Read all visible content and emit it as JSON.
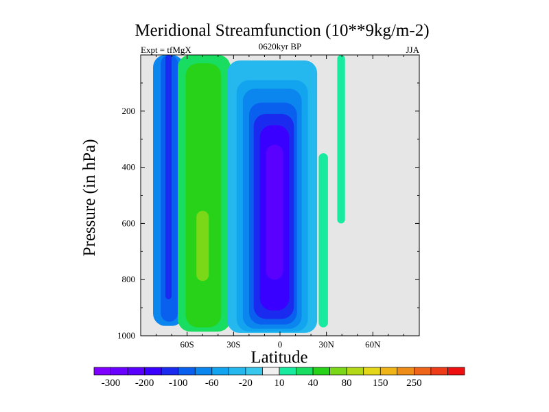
{
  "chart_data": {
    "type": "contour",
    "title": "Meridional Streamfunction (10**9kg/m-2)",
    "left_string": "Expt = tfMgX",
    "center_string": "0620kyr BP",
    "right_string": "JJA",
    "xlabel": "Latitude",
    "ylabel": "Pressure (in hPa)",
    "xlim": [
      -90,
      90
    ],
    "ylim": [
      0,
      1000
    ],
    "y_reversed": true,
    "x_ticks": [
      {
        "value": -60,
        "label": "60S"
      },
      {
        "value": -30,
        "label": "30S"
      },
      {
        "value": 0,
        "label": "0"
      },
      {
        "value": 30,
        "label": "30N"
      },
      {
        "value": 60,
        "label": "60N"
      }
    ],
    "y_ticks": [
      {
        "value": 200,
        "label": "200"
      },
      {
        "value": 400,
        "label": "400"
      },
      {
        "value": 600,
        "label": "600"
      },
      {
        "value": 800,
        "label": "800"
      },
      {
        "value": 1000,
        "label": "1000"
      }
    ],
    "colorbar": {
      "colors": [
        "#7f00ff",
        "#6a00ff",
        "#5a00ff",
        "#3a00ff",
        "#1a2aee",
        "#0a60ee",
        "#0a86ee",
        "#12a4ee",
        "#24b8ee",
        "#38c8ee",
        "#f0f0f0",
        "#18eba0",
        "#18dd60",
        "#28d218",
        "#7ad818",
        "#b2d818",
        "#e4d618",
        "#f0b418",
        "#ee8c18",
        "#ee6418",
        "#ee3c18",
        "#ee1010"
      ],
      "labels": [
        {
          "after_box": 1,
          "text": "-300"
        },
        {
          "after_box": 3,
          "text": "-200"
        },
        {
          "after_box": 5,
          "text": "-100"
        },
        {
          "after_box": 7,
          "text": "-60"
        },
        {
          "after_box": 9,
          "text": "-20"
        },
        {
          "after_box": 11,
          "text": "10"
        },
        {
          "after_box": 13,
          "text": "40"
        },
        {
          "after_box": 15,
          "text": "80"
        },
        {
          "after_box": 17,
          "text": "150"
        },
        {
          "after_box": 19,
          "text": "250"
        }
      ]
    },
    "background_color": "#e6e6e6",
    "cells": [
      {
        "name": "southern-polar-cell",
        "type": "negative",
        "center_lat": -72,
        "width_deg": 18,
        "top_hpa": 0,
        "bottom_hpa": 970,
        "levels": [
          {
            "color": "#0a86ee",
            "lat_range": [
              -82,
              -62
            ],
            "p_range": [
              0,
              965
            ]
          },
          {
            "color": "#0a60ee",
            "lat_range": [
              -77,
              -66
            ],
            "p_range": [
              0,
              950
            ]
          },
          {
            "color": "#1a2aee",
            "lat_range": [
              -74,
              -70
            ],
            "p_range": [
              0,
              870
            ]
          }
        ]
      },
      {
        "name": "ferrel-cell",
        "type": "positive",
        "center_lat": -48,
        "width_deg": 22,
        "top_hpa": 0,
        "bottom_hpa": 985,
        "levels": [
          {
            "color": "#18dd60",
            "lat_range": [
              -66,
              -32
            ],
            "p_range": [
              0,
              985
            ]
          },
          {
            "color": "#28d218",
            "lat_range": [
              -61,
              -38
            ],
            "p_range": [
              30,
              970
            ]
          },
          {
            "color": "#7ad818",
            "lat_range": [
              -54,
              -46
            ],
            "p_range": [
              555,
              805
            ]
          }
        ]
      },
      {
        "name": "hadley-cell",
        "type": "negative",
        "center_lat": -4,
        "width_deg": 28,
        "top_hpa": 0,
        "bottom_hpa": 995,
        "levels": [
          {
            "color": "#24b8ee",
            "lat_range": [
              -34,
              24
            ],
            "p_range": [
              20,
              990
            ]
          },
          {
            "color": "#12a4ee",
            "lat_range": [
              -28,
              18
            ],
            "p_range": [
              90,
              985
            ]
          },
          {
            "color": "#0a86ee",
            "lat_range": [
              -24,
              14
            ],
            "p_range": [
              120,
              975
            ]
          },
          {
            "color": "#0a60ee",
            "lat_range": [
              -20,
              11
            ],
            "p_range": [
              170,
              960
            ]
          },
          {
            "color": "#1a2aee",
            "lat_range": [
              -17,
              9
            ],
            "p_range": [
              210,
              940
            ]
          },
          {
            "color": "#3a00ff",
            "lat_range": [
              -13,
              6
            ],
            "p_range": [
              250,
              910
            ]
          },
          {
            "color": "#5a00ff",
            "lat_range": [
              -9,
              2
            ],
            "p_range": [
              320,
              800
            ]
          }
        ]
      },
      {
        "name": "northern-cells",
        "type": "positive",
        "levels": [
          {
            "color": "#18eba0",
            "lat_range": [
              25,
              31
            ],
            "p_range": [
              350,
              970
            ]
          },
          {
            "color": "#18eba0",
            "lat_range": [
              37,
              42
            ],
            "p_range": [
              0,
              600
            ]
          }
        ]
      }
    ]
  }
}
